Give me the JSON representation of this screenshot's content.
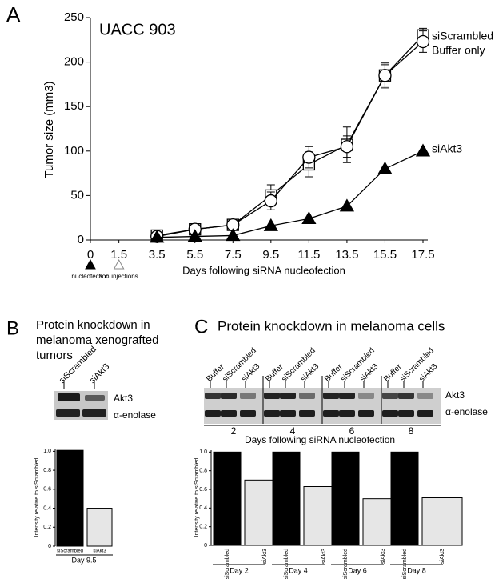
{
  "chart_data": [
    {
      "type": "line",
      "panel_label": "A",
      "title": "UACC 903",
      "xlabel": "Days following siRNA nucleofection",
      "ylabel": "Tumor size (mm3)",
      "x": [
        3.5,
        5.5,
        7.5,
        9.5,
        11.5,
        13.5,
        15.5,
        17.5
      ],
      "series": [
        {
          "name": "siScrambled",
          "color": "#000000",
          "marker": "square",
          "fill": "none",
          "values": [
            5,
            12,
            17,
            50,
            85,
            107,
            185,
            230
          ],
          "errors": [
            3,
            3,
            4,
            12,
            14,
            20,
            14,
            8
          ]
        },
        {
          "name": "Buffer only",
          "color": "#000000",
          "marker": "circle",
          "fill": "none",
          "values": [
            4,
            12,
            17,
            44,
            93,
            105,
            185,
            223
          ],
          "errors": [
            2,
            2,
            3,
            10,
            12,
            12,
            12,
            12
          ]
        },
        {
          "name": "siAkt3",
          "color": "#000000",
          "marker": "triangle",
          "fill": "#000000",
          "values": [
            3,
            4,
            5,
            16,
            24,
            38,
            80,
            100
          ]
        }
      ],
      "xlim": [
        0,
        17.5
      ],
      "xticks": [
        0,
        1.5,
        3.5,
        5.5,
        7.5,
        9.5,
        11.5,
        13.5,
        15.5,
        17.5
      ],
      "ylim": [
        0,
        250
      ],
      "yticks": [
        0,
        50,
        100,
        150,
        200,
        250
      ],
      "annotations": [
        {
          "x": 0,
          "label": "nucleofection",
          "marker": "filled"
        },
        {
          "x": 1.5,
          "label": "s.c. injections",
          "marker": "open"
        }
      ]
    },
    {
      "type": "bar",
      "panel_label": "B",
      "title": [
        "Protein knockdown in",
        "melanoma xenografted",
        "tumors"
      ],
      "categories": [
        "siScrambled",
        "siAkt3"
      ],
      "values": [
        1.01,
        0.4
      ],
      "colors": [
        "#000000",
        "#e6e6e6"
      ],
      "ylabel": "Intensity relative to siScrambled",
      "xlabel": "Day 9.5",
      "ylim": [
        0,
        1.02
      ],
      "yticks": [
        0,
        0.2,
        0.4,
        0.6,
        0.8,
        {
          "value": 1,
          "label": "1.0"
        }
      ],
      "blot": {
        "lanes": [
          "siScrambled",
          "siAkt3"
        ],
        "rows": [
          "Akt3",
          "α-enolase"
        ]
      }
    },
    {
      "type": "grouped_bar",
      "panel_label": "C",
      "title": "Protein knockdown in melanoma cells",
      "categories": [
        "Day 2",
        "Day 4",
        "Day 6",
        "Day 8"
      ],
      "series": [
        {
          "name": "siScrambled",
          "color": "#000000",
          "values": [
            1,
            1,
            1,
            1
          ]
        },
        {
          "name": "siAkt3",
          "color": "#e6e6e6",
          "values": [
            0.7,
            0.63,
            0.5,
            0.51
          ]
        }
      ],
      "ylabel": "Intensity relative to siScrambled",
      "ylim": [
        0,
        1.02
      ],
      "yticks": [
        0,
        0.2,
        0.4,
        0.6,
        0.8,
        {
          "value": 1,
          "label": "1.0"
        }
      ],
      "blot": {
        "lanes": [
          "Buffer",
          "siScrambled",
          "siAkt3"
        ],
        "groups": [
          "2",
          "4",
          "6",
          "8"
        ],
        "rows": [
          "Akt3",
          "α-enolase"
        ],
        "xlabel": "Days following siRNA nucleofection"
      }
    }
  ]
}
